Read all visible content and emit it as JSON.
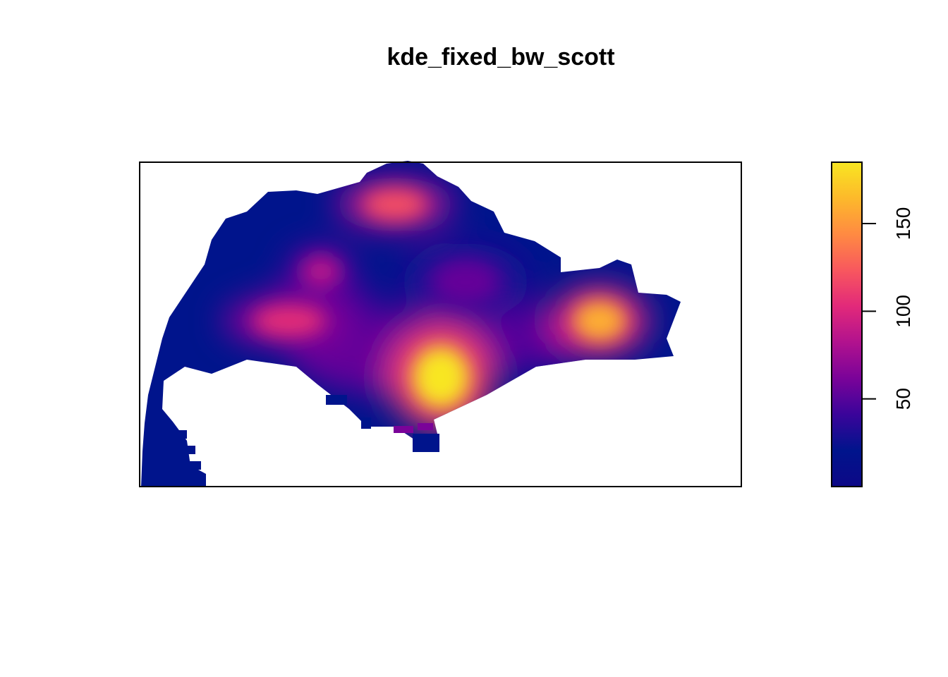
{
  "chart_data": {
    "type": "heatmap",
    "title": "kde_fixed_bw_scott",
    "xlabel": "",
    "ylabel": "",
    "colorbar": {
      "range": [
        0,
        185
      ],
      "ticks": [
        50,
        100,
        150
      ],
      "tick_labels": [
        "50",
        "100",
        "150"
      ],
      "palette": [
        "#0D0887",
        "#00148C",
        "#3A049A",
        "#7A0399",
        "#B1128E",
        "#E2297A",
        "#F8575E",
        "#FF8A42",
        "#FDB92B",
        "#F8E621"
      ]
    },
    "hotspots": [
      {
        "location": "south-central",
        "value": 185
      },
      {
        "location": "east",
        "value": 160
      },
      {
        "location": "west-central",
        "value": 105
      },
      {
        "location": "north",
        "value": 120
      },
      {
        "location": "northwest-central",
        "value": 85
      },
      {
        "location": "central",
        "value": 55
      }
    ],
    "legend_position": "right"
  }
}
